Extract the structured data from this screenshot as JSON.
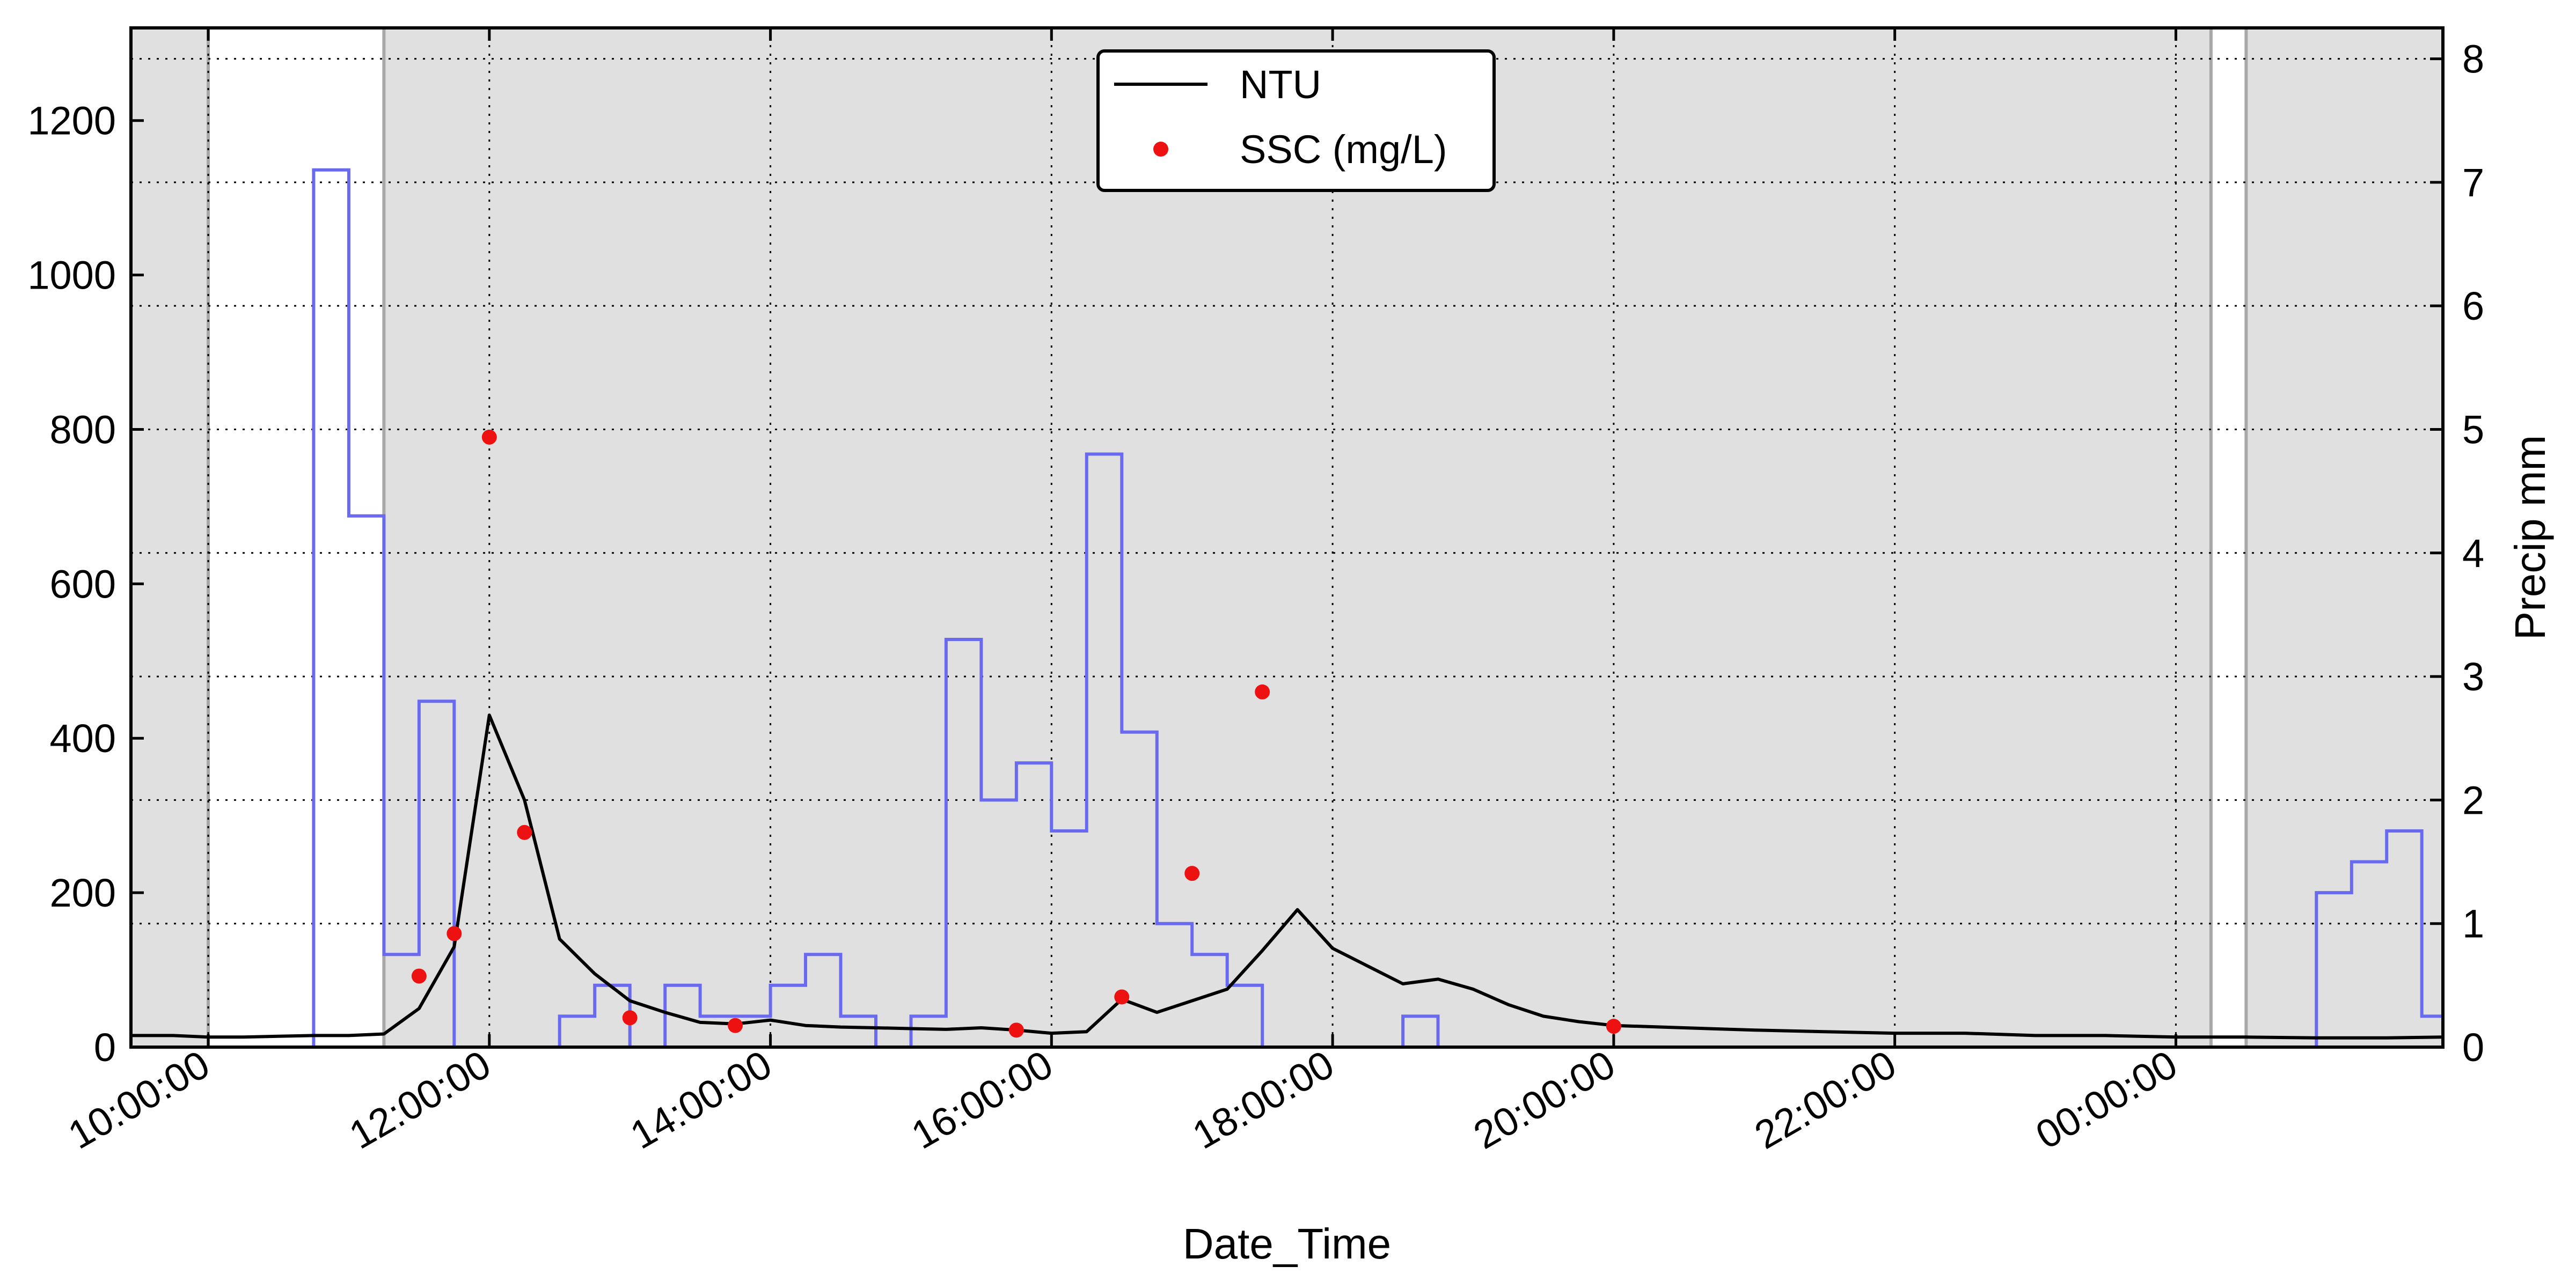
{
  "chart_data": {
    "type": "line",
    "xlabel": "Date_Time",
    "ylabel": "",
    "y2label": "Precip mm",
    "ylim": [
      0,
      1320
    ],
    "y2lim": [
      0,
      8.25
    ],
    "xlim_hours": [
      9.45,
      25.9
    ],
    "y_ticks": [
      0,
      200,
      400,
      600,
      800,
      1000,
      1200
    ],
    "y_tick_labels": [
      "0",
      "200",
      "400",
      "600",
      "800",
      "1000",
      "1200"
    ],
    "y2_ticks": [
      0,
      1,
      2,
      3,
      4,
      5,
      6,
      7,
      8
    ],
    "y2_tick_labels": [
      "0",
      "1",
      "2",
      "3",
      "4",
      "5",
      "6",
      "7",
      "8"
    ],
    "x_ticks_hours": [
      10,
      12,
      14,
      16,
      18,
      20,
      22,
      24
    ],
    "x_tick_labels": [
      "10:00:00",
      "12:00:00",
      "14:00:00",
      "16:00:00",
      "18:00:00",
      "20:00:00",
      "22:00:00",
      "00:00:00"
    ],
    "grid": true,
    "legend_position": "top-center",
    "shaded_background": true,
    "unshaded_intervals_hours": [
      [
        10.0,
        11.25
      ],
      [
        24.25,
        24.5
      ]
    ],
    "colors": {
      "background_shade": "#e0e0e0",
      "ntu": "#000000",
      "ssc": "#ee1111",
      "precip": "#6a6af0",
      "interval_edge": "#a8a8a8"
    },
    "series": [
      {
        "name": "NTU",
        "kind": "line",
        "axis": "left",
        "x": [
          9.45,
          9.75,
          10.0,
          10.25,
          10.5,
          10.75,
          11.0,
          11.25,
          11.5,
          11.75,
          12.0,
          12.25,
          12.5,
          12.75,
          13.0,
          13.25,
          13.5,
          13.75,
          14.0,
          14.25,
          14.5,
          14.75,
          15.0,
          15.25,
          15.5,
          15.75,
          16.0,
          16.25,
          16.5,
          16.75,
          17.0,
          17.25,
          17.5,
          17.75,
          18.0,
          18.25,
          18.5,
          18.75,
          19.0,
          19.25,
          19.5,
          19.75,
          20.0,
          20.5,
          21.0,
          21.5,
          22.0,
          22.5,
          23.0,
          23.5,
          24.0,
          24.5,
          25.0,
          25.5,
          25.9
        ],
        "values": [
          15,
          15,
          13,
          13,
          14,
          15,
          15,
          17,
          50,
          130,
          430,
          320,
          140,
          95,
          60,
          45,
          32,
          30,
          35,
          28,
          26,
          25,
          24,
          23,
          25,
          22,
          18,
          20,
          62,
          45,
          60,
          75,
          125,
          178,
          128,
          105,
          82,
          88,
          75,
          55,
          40,
          33,
          28,
          25,
          22,
          20,
          18,
          18,
          15,
          15,
          13,
          13,
          12,
          12,
          13
        ]
      },
      {
        "name": "SSC (mg/L)",
        "kind": "scatter",
        "axis": "left",
        "x": [
          11.5,
          11.75,
          12.0,
          12.25,
          13.0,
          13.75,
          15.75,
          16.5,
          17.0,
          17.5,
          20.0
        ],
        "values": [
          92,
          147,
          790,
          278,
          38,
          28,
          22,
          65,
          225,
          460,
          27
        ]
      },
      {
        "name": "",
        "kind": "step",
        "axis": "right",
        "x": [
          10.5,
          10.75,
          11.0,
          11.25,
          11.5,
          11.75,
          12.0,
          12.5,
          12.75,
          13.0,
          13.25,
          13.5,
          13.75,
          14.0,
          14.25,
          14.5,
          14.75,
          15.0,
          15.25,
          15.5,
          15.75,
          16.0,
          16.25,
          16.5,
          16.75,
          17.0,
          17.25,
          17.5,
          17.75,
          18.0,
          18.5,
          18.75,
          25.0,
          25.25,
          25.5,
          25.75
        ],
        "values": [
          0,
          7.1,
          4.3,
          0.75,
          2.8,
          0,
          0,
          0.25,
          0.5,
          0,
          0.5,
          0.25,
          0.25,
          0.5,
          0.75,
          0.25,
          0,
          0.25,
          3.3,
          2.0,
          2.3,
          1.75,
          4.8,
          2.55,
          1.0,
          0.75,
          0.5,
          0,
          0,
          0,
          0.25,
          0,
          1.25,
          1.5,
          1.75,
          0.25
        ],
        "end_x": 25.9
      }
    ]
  }
}
